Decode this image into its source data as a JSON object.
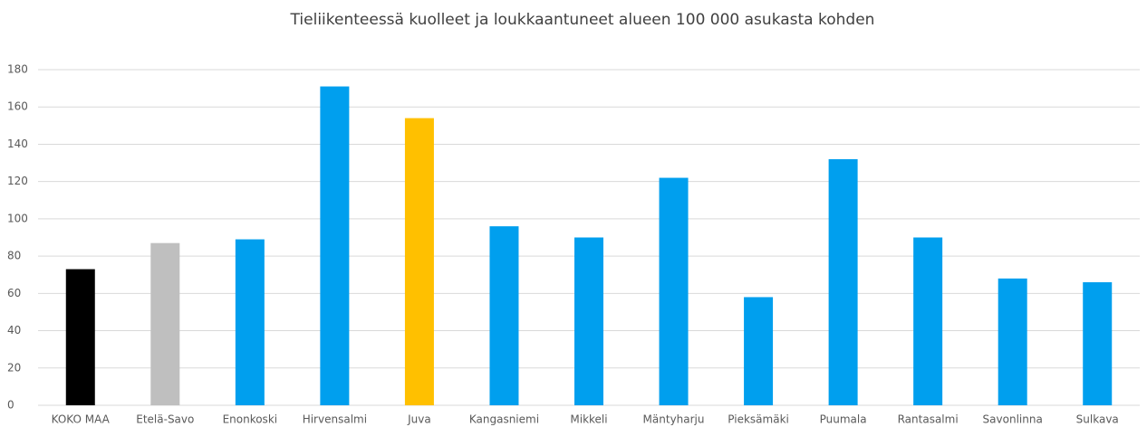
{
  "chart_data": {
    "type": "bar",
    "title": "Tieliikenteessä kuolleet ja loukkaantuneet alueen 100 000 asukasta kohden",
    "categories": [
      "KOKO MAA",
      "Etelä-Savo",
      "Enonkoski",
      "Hirvensalmi",
      "Juva",
      "Kangasniemi",
      "Mikkeli",
      "Mäntyharju",
      "Pieksämäki",
      "Puumala",
      "Rantasalmi",
      "Savonlinna",
      "Sulkava"
    ],
    "values": [
      73,
      87,
      89,
      171,
      154,
      96,
      90,
      122,
      58,
      132,
      90,
      68,
      66
    ],
    "colors": [
      "#000000",
      "#bfbfbf",
      "#009fee",
      "#009fee",
      "#ffc000",
      "#009fee",
      "#009fee",
      "#009fee",
      "#009fee",
      "#009fee",
      "#009fee",
      "#009fee",
      "#009fee"
    ],
    "ylim": [
      0,
      180
    ],
    "yticks": [
      0,
      20,
      40,
      60,
      80,
      100,
      120,
      140,
      160,
      180
    ],
    "grid": true
  }
}
